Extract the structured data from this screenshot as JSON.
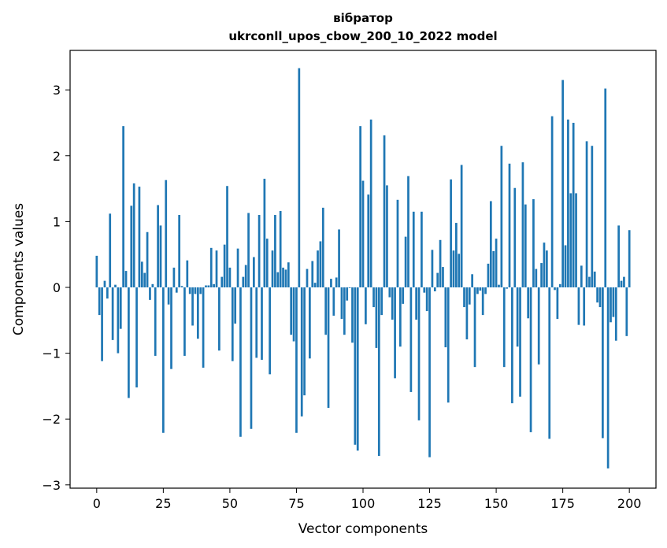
{
  "chart_data": {
    "type": "bar",
    "title": "вібратор",
    "subtitle": "ukrconll_upos_cbow_200_10_2022 model",
    "xlabel": "Vector components",
    "ylabel": "Components values",
    "xlim": [
      -10,
      210
    ],
    "ylim": [
      -3.05,
      3.6
    ],
    "xticks": [
      0,
      25,
      50,
      75,
      100,
      125,
      150,
      175,
      200
    ],
    "yticks": [
      -3,
      -2,
      -1,
      0,
      1,
      2,
      3
    ],
    "grid": false,
    "bar_color": "#1f77b4",
    "series": [
      {
        "values": [
          0.48,
          -0.42,
          -1.12,
          0.1,
          -0.17,
          1.12,
          -0.8,
          0.04,
          -1.0,
          -0.63,
          2.45,
          0.25,
          -1.68,
          1.24,
          1.58,
          -1.52,
          1.53,
          0.39,
          0.22,
          0.84,
          -0.19,
          0.05,
          -1.04,
          1.25,
          0.94,
          -2.21,
          1.63,
          -0.26,
          -1.24,
          0.3,
          -0.08,
          1.1,
          0.02,
          -1.04,
          0.41,
          -0.1,
          -0.58,
          -0.1,
          -0.78,
          -0.1,
          -1.22,
          0.03,
          0.03,
          0.6,
          0.05,
          0.56,
          -0.96,
          0.16,
          0.65,
          1.54,
          0.3,
          -1.12,
          -0.55,
          0.59,
          -2.27,
          0.16,
          0.34,
          1.13,
          -2.15,
          0.46,
          -1.07,
          1.1,
          -1.1,
          1.65,
          0.74,
          -1.32,
          0.56,
          1.1,
          0.23,
          1.16,
          0.3,
          0.27,
          0.38,
          -0.72,
          -0.82,
          -2.21,
          3.33,
          -1.96,
          -1.64,
          0.28,
          -1.08,
          0.4,
          0.07,
          0.56,
          0.7,
          1.21,
          -0.72,
          -1.83,
          0.13,
          -0.43,
          0.15,
          0.88,
          -0.48,
          -0.72,
          -0.2,
          -0.01,
          -0.84,
          -2.39,
          -2.48,
          2.45,
          1.62,
          -0.56,
          1.41,
          2.55,
          -0.3,
          -0.92,
          -2.56,
          -0.42,
          2.31,
          1.55,
          -0.15,
          -0.49,
          -1.38,
          1.33,
          -0.9,
          -0.25,
          0.77,
          1.69,
          -1.59,
          1.15,
          -0.49,
          -2.02,
          1.15,
          -0.08,
          -0.36,
          -2.58,
          0.57,
          -0.06,
          0.22,
          0.72,
          0.31,
          -0.91,
          -1.75,
          1.64,
          0.56,
          0.98,
          0.51,
          1.86,
          -0.3,
          -0.79,
          -0.26,
          0.2,
          -1.21,
          -0.1,
          -0.05,
          -0.42,
          -0.1,
          0.36,
          1.31,
          0.55,
          0.74,
          0.04,
          2.15,
          -1.21,
          -0.02,
          1.88,
          -1.76,
          1.51,
          -0.9,
          -1.66,
          1.9,
          1.26,
          -0.47,
          -2.2,
          1.34,
          0.28,
          -1.17,
          0.37,
          0.68,
          0.56,
          -2.3,
          2.6,
          -0.04,
          -0.48,
          0.05,
          3.15,
          0.64,
          2.55,
          1.43,
          2.5,
          1.43,
          -0.57,
          0.33,
          -0.58,
          2.22,
          0.16,
          2.15,
          0.24,
          -0.23,
          -0.3,
          -2.29,
          3.02,
          -2.75,
          -0.53,
          -0.45,
          -0.81,
          0.94,
          0.1,
          0.16,
          -0.74,
          0.87
        ]
      }
    ]
  }
}
